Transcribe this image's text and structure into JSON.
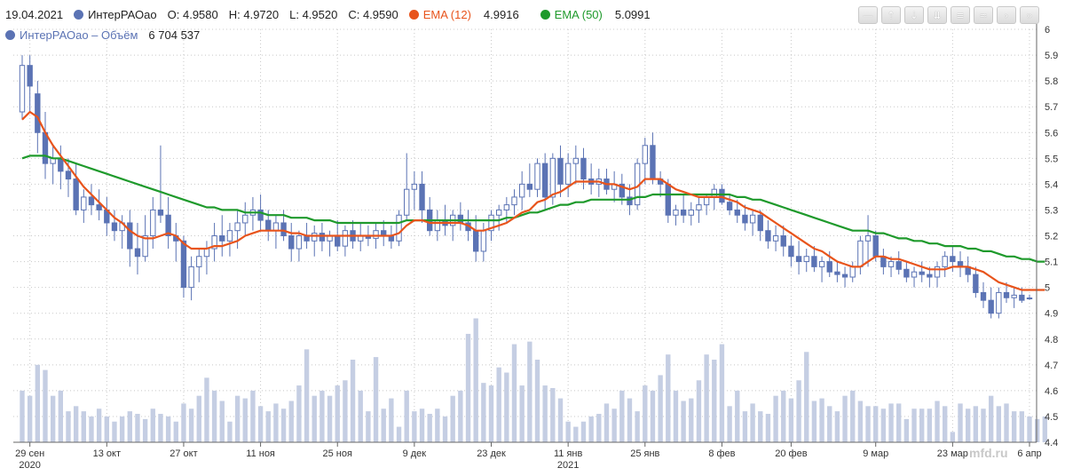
{
  "legend": {
    "date": "19.04.2021",
    "ticker": "ИнтерРАОао",
    "open": "O: 4.9580",
    "high": "H: 4.9720",
    "low": "L: 4.9520",
    "close": "C: 4.9590",
    "ema12_label": "EMA (12)",
    "ema12_value": "4.9916",
    "ema50_label": "EMA (50)",
    "ema50_value": "5.0991",
    "volume_label": "ИнтерРАОао – Объём",
    "volume_value": "6 704 537"
  },
  "toolbar": {
    "buttons": [
      {
        "name": "zoom-reset-button",
        "glyph": "—"
      },
      {
        "name": "scroll-up-button",
        "glyph": "⇡"
      },
      {
        "name": "download-button",
        "glyph": "⇣"
      },
      {
        "name": "save-button",
        "glyph": "⇊"
      },
      {
        "name": "line-style-button",
        "glyph": "≡"
      },
      {
        "name": "wave-button",
        "glyph": "≈"
      },
      {
        "name": "next-button",
        "glyph": "›"
      },
      {
        "name": "last-button",
        "glyph": "»"
      }
    ]
  },
  "watermark": "mfd.ru",
  "colors": {
    "candle": "#5b73b4",
    "ema12": "#e8541c",
    "ema50": "#1f9a2c",
    "volume": "#c5cee3",
    "grid": "#c8c8c8"
  },
  "chart_data": {
    "type": "candlestick",
    "y_ticks": [
      "6",
      "5.9",
      "5.8",
      "5.7",
      "5.6",
      "5.5",
      "5.4",
      "5.3",
      "5.2",
      "5.1",
      "5",
      "4.9",
      "4.8",
      "4.7",
      "4.6",
      "4.5",
      "4.4"
    ],
    "ylim": [
      4.4,
      6.0
    ],
    "x_ticks": [
      {
        "label": "29 сен",
        "year": "2020",
        "index": 1
      },
      {
        "label": "13 окт",
        "year": "",
        "index": 11
      },
      {
        "label": "27 окт",
        "year": "",
        "index": 21
      },
      {
        "label": "11 ноя",
        "year": "",
        "index": 31
      },
      {
        "label": "25 ноя",
        "year": "",
        "index": 41
      },
      {
        "label": "9 дек",
        "year": "",
        "index": 51
      },
      {
        "label": "23 дек",
        "year": "",
        "index": 61
      },
      {
        "label": "11 янв",
        "year": "2021",
        "index": 71
      },
      {
        "label": "25 янв",
        "year": "",
        "index": 81
      },
      {
        "label": "8 фев",
        "year": "",
        "index": 91
      },
      {
        "label": "20 фев",
        "year": "",
        "index": 100
      },
      {
        "label": "9 мар",
        "year": "",
        "index": 111
      },
      {
        "label": "23 мар",
        "year": "",
        "index": 121
      },
      {
        "label": "6 апр",
        "year": "",
        "index": 131
      }
    ],
    "candles": [
      [
        5.68,
        5.9,
        5.65,
        5.86
      ],
      [
        5.86,
        5.9,
        5.68,
        5.78
      ],
      [
        5.75,
        5.8,
        5.52,
        5.6
      ],
      [
        5.6,
        5.68,
        5.42,
        5.48
      ],
      [
        5.48,
        5.55,
        5.4,
        5.5
      ],
      [
        5.5,
        5.55,
        5.38,
        5.45
      ],
      [
        5.45,
        5.5,
        5.35,
        5.42
      ],
      [
        5.42,
        5.48,
        5.28,
        5.3
      ],
      [
        5.3,
        5.38,
        5.25,
        5.35
      ],
      [
        5.35,
        5.4,
        5.28,
        5.32
      ],
      [
        5.32,
        5.38,
        5.26,
        5.3
      ],
      [
        5.3,
        5.35,
        5.2,
        5.25
      ],
      [
        5.25,
        5.3,
        5.18,
        5.22
      ],
      [
        5.22,
        5.28,
        5.15,
        5.25
      ],
      [
        5.25,
        5.3,
        5.08,
        5.15
      ],
      [
        5.15,
        5.25,
        5.05,
        5.12
      ],
      [
        5.12,
        5.28,
        5.1,
        5.2
      ],
      [
        5.2,
        5.35,
        5.15,
        5.3
      ],
      [
        5.3,
        5.55,
        5.25,
        5.28
      ],
      [
        5.28,
        5.35,
        5.15,
        5.2
      ],
      [
        5.2,
        5.25,
        5.1,
        5.18
      ],
      [
        5.18,
        5.2,
        4.96,
        5.0
      ],
      [
        5.0,
        5.12,
        4.95,
        5.08
      ],
      [
        5.08,
        5.15,
        5.02,
        5.12
      ],
      [
        5.12,
        5.18,
        5.05,
        5.15
      ],
      [
        5.15,
        5.25,
        5.1,
        5.2
      ],
      [
        5.2,
        5.28,
        5.12,
        5.18
      ],
      [
        5.18,
        5.25,
        5.12,
        5.22
      ],
      [
        5.22,
        5.3,
        5.15,
        5.25
      ],
      [
        5.25,
        5.33,
        5.2,
        5.28
      ],
      [
        5.28,
        5.35,
        5.22,
        5.3
      ],
      [
        5.3,
        5.36,
        5.22,
        5.26
      ],
      [
        5.26,
        5.3,
        5.18,
        5.22
      ],
      [
        5.22,
        5.28,
        5.15,
        5.25
      ],
      [
        5.25,
        5.3,
        5.18,
        5.2
      ],
      [
        5.2,
        5.25,
        5.1,
        5.15
      ],
      [
        5.15,
        5.22,
        5.1,
        5.2
      ],
      [
        5.2,
        5.25,
        5.15,
        5.18
      ],
      [
        5.18,
        5.24,
        5.12,
        5.21
      ],
      [
        5.21,
        5.25,
        5.14,
        5.18
      ],
      [
        5.18,
        5.22,
        5.12,
        5.2
      ],
      [
        5.2,
        5.26,
        5.14,
        5.16
      ],
      [
        5.16,
        5.24,
        5.12,
        5.22
      ],
      [
        5.22,
        5.26,
        5.15,
        5.18
      ],
      [
        5.18,
        5.25,
        5.14,
        5.2
      ],
      [
        5.2,
        5.24,
        5.16,
        5.19
      ],
      [
        5.19,
        5.25,
        5.15,
        5.22
      ],
      [
        5.22,
        5.26,
        5.16,
        5.2
      ],
      [
        5.2,
        5.24,
        5.15,
        5.18
      ],
      [
        5.18,
        5.3,
        5.16,
        5.28
      ],
      [
        5.28,
        5.52,
        5.26,
        5.38
      ],
      [
        5.38,
        5.45,
        5.3,
        5.4
      ],
      [
        5.4,
        5.45,
        5.25,
        5.3
      ],
      [
        5.3,
        5.35,
        5.2,
        5.22
      ],
      [
        5.22,
        5.3,
        5.18,
        5.26
      ],
      [
        5.26,
        5.32,
        5.2,
        5.24
      ],
      [
        5.24,
        5.3,
        5.18,
        5.28
      ],
      [
        5.28,
        5.33,
        5.22,
        5.25
      ],
      [
        5.25,
        5.3,
        5.18,
        5.22
      ],
      [
        5.22,
        5.28,
        5.1,
        5.14
      ],
      [
        5.14,
        5.25,
        5.1,
        5.22
      ],
      [
        5.22,
        5.3,
        5.18,
        5.28
      ],
      [
        5.28,
        5.32,
        5.22,
        5.3
      ],
      [
        5.3,
        5.35,
        5.25,
        5.32
      ],
      [
        5.32,
        5.38,
        5.28,
        5.35
      ],
      [
        5.35,
        5.45,
        5.3,
        5.4
      ],
      [
        5.4,
        5.48,
        5.35,
        5.38
      ],
      [
        5.38,
        5.5,
        5.35,
        5.48
      ],
      [
        5.48,
        5.52,
        5.3,
        5.35
      ],
      [
        5.35,
        5.52,
        5.32,
        5.5
      ],
      [
        5.5,
        5.55,
        5.35,
        5.4
      ],
      [
        5.4,
        5.52,
        5.35,
        5.48
      ],
      [
        5.48,
        5.55,
        5.4,
        5.5
      ],
      [
        5.5,
        5.54,
        5.38,
        5.42
      ],
      [
        5.42,
        5.48,
        5.36,
        5.4
      ],
      [
        5.4,
        5.46,
        5.35,
        5.42
      ],
      [
        5.42,
        5.46,
        5.36,
        5.38
      ],
      [
        5.38,
        5.45,
        5.33,
        5.4
      ],
      [
        5.4,
        5.44,
        5.32,
        5.35
      ],
      [
        5.35,
        5.4,
        5.28,
        5.32
      ],
      [
        5.32,
        5.5,
        5.3,
        5.48
      ],
      [
        5.48,
        5.58,
        5.4,
        5.55
      ],
      [
        5.55,
        5.6,
        5.4,
        5.42
      ],
      [
        5.42,
        5.45,
        5.35,
        5.4
      ],
      [
        5.4,
        5.42,
        5.25,
        5.28
      ],
      [
        5.28,
        5.32,
        5.24,
        5.3
      ],
      [
        5.3,
        5.36,
        5.25,
        5.28
      ],
      [
        5.28,
        5.33,
        5.24,
        5.3
      ],
      [
        5.3,
        5.35,
        5.25,
        5.32
      ],
      [
        5.32,
        5.36,
        5.28,
        5.35
      ],
      [
        5.35,
        5.4,
        5.3,
        5.38
      ],
      [
        5.38,
        5.4,
        5.32,
        5.33
      ],
      [
        5.33,
        5.36,
        5.28,
        5.3
      ],
      [
        5.3,
        5.34,
        5.25,
        5.28
      ],
      [
        5.28,
        5.32,
        5.22,
        5.25
      ],
      [
        5.25,
        5.3,
        5.2,
        5.28
      ],
      [
        5.28,
        5.3,
        5.18,
        5.22
      ],
      [
        5.22,
        5.26,
        5.15,
        5.18
      ],
      [
        5.18,
        5.24,
        5.14,
        5.2
      ],
      [
        5.2,
        5.24,
        5.12,
        5.16
      ],
      [
        5.16,
        5.2,
        5.08,
        5.12
      ],
      [
        5.12,
        5.18,
        5.05,
        5.1
      ],
      [
        5.1,
        5.15,
        5.06,
        5.12
      ],
      [
        5.12,
        5.16,
        5.06,
        5.08
      ],
      [
        5.08,
        5.12,
        5.02,
        5.1
      ],
      [
        5.1,
        5.14,
        5.04,
        5.06
      ],
      [
        5.06,
        5.1,
        5.02,
        5.05
      ],
      [
        5.05,
        5.08,
        5.0,
        5.04
      ],
      [
        5.04,
        5.1,
        5.02,
        5.08
      ],
      [
        5.08,
        5.2,
        5.05,
        5.18
      ],
      [
        5.18,
        5.28,
        5.08,
        5.2
      ],
      [
        5.2,
        5.22,
        5.1,
        5.12
      ],
      [
        5.12,
        5.15,
        5.05,
        5.08
      ],
      [
        5.08,
        5.12,
        5.04,
        5.1
      ],
      [
        5.1,
        5.14,
        5.05,
        5.07
      ],
      [
        5.07,
        5.1,
        5.02,
        5.04
      ],
      [
        5.04,
        5.08,
        5.0,
        5.06
      ],
      [
        5.06,
        5.1,
        5.02,
        5.05
      ],
      [
        5.05,
        5.08,
        5.0,
        5.04
      ],
      [
        5.04,
        5.1,
        5.0,
        5.08
      ],
      [
        5.08,
        5.14,
        5.04,
        5.12
      ],
      [
        5.12,
        5.16,
        5.06,
        5.1
      ],
      [
        5.1,
        5.14,
        5.04,
        5.08
      ],
      [
        5.08,
        5.12,
        5.02,
        5.05
      ],
      [
        5.05,
        5.08,
        4.96,
        4.98
      ],
      [
        4.98,
        5.02,
        4.92,
        4.95
      ],
      [
        4.95,
        5.0,
        4.88,
        4.9
      ],
      [
        4.9,
        5.0,
        4.88,
        4.98
      ],
      [
        4.98,
        5.02,
        4.94,
        4.96
      ],
      [
        4.96,
        5.0,
        4.92,
        4.97
      ],
      [
        4.97,
        5.0,
        4.94,
        4.95
      ],
      [
        4.958,
        4.972,
        4.952,
        4.959
      ]
    ],
    "ema12": [
      5.65,
      5.68,
      5.66,
      5.6,
      5.55,
      5.51,
      5.47,
      5.43,
      5.39,
      5.36,
      5.33,
      5.3,
      5.27,
      5.25,
      5.22,
      5.2,
      5.19,
      5.19,
      5.2,
      5.21,
      5.2,
      5.17,
      5.15,
      5.15,
      5.15,
      5.16,
      5.16,
      5.17,
      5.18,
      5.2,
      5.21,
      5.22,
      5.22,
      5.22,
      5.22,
      5.21,
      5.21,
      5.2,
      5.2,
      5.2,
      5.2,
      5.2,
      5.2,
      5.2,
      5.2,
      5.2,
      5.2,
      5.2,
      5.2,
      5.21,
      5.24,
      5.26,
      5.26,
      5.25,
      5.25,
      5.25,
      5.25,
      5.25,
      5.24,
      5.22,
      5.22,
      5.23,
      5.24,
      5.25,
      5.27,
      5.29,
      5.3,
      5.33,
      5.34,
      5.36,
      5.37,
      5.39,
      5.41,
      5.41,
      5.41,
      5.41,
      5.4,
      5.4,
      5.39,
      5.38,
      5.39,
      5.42,
      5.42,
      5.42,
      5.4,
      5.38,
      5.37,
      5.36,
      5.35,
      5.35,
      5.35,
      5.35,
      5.34,
      5.33,
      5.31,
      5.3,
      5.29,
      5.27,
      5.25,
      5.23,
      5.21,
      5.19,
      5.17,
      5.15,
      5.14,
      5.12,
      5.1,
      5.09,
      5.08,
      5.08,
      5.1,
      5.12,
      5.12,
      5.11,
      5.11,
      5.1,
      5.09,
      5.08,
      5.07,
      5.07,
      5.07,
      5.08,
      5.08,
      5.08,
      5.07,
      5.06,
      5.04,
      5.02,
      5.01,
      5.0,
      4.99,
      4.99,
      4.99,
      4.99
    ],
    "ema50": [
      5.5,
      5.51,
      5.51,
      5.51,
      5.5,
      5.5,
      5.49,
      5.48,
      5.47,
      5.46,
      5.45,
      5.44,
      5.43,
      5.42,
      5.41,
      5.4,
      5.39,
      5.38,
      5.37,
      5.36,
      5.35,
      5.34,
      5.33,
      5.32,
      5.31,
      5.31,
      5.3,
      5.3,
      5.3,
      5.29,
      5.29,
      5.29,
      5.28,
      5.28,
      5.28,
      5.27,
      5.27,
      5.27,
      5.26,
      5.26,
      5.26,
      5.25,
      5.25,
      5.25,
      5.25,
      5.25,
      5.25,
      5.25,
      5.25,
      5.25,
      5.26,
      5.26,
      5.26,
      5.26,
      5.26,
      5.26,
      5.26,
      5.26,
      5.26,
      5.26,
      5.26,
      5.26,
      5.26,
      5.27,
      5.27,
      5.28,
      5.29,
      5.29,
      5.3,
      5.31,
      5.32,
      5.32,
      5.33,
      5.33,
      5.34,
      5.34,
      5.34,
      5.34,
      5.34,
      5.34,
      5.35,
      5.35,
      5.36,
      5.36,
      5.36,
      5.36,
      5.36,
      5.36,
      5.36,
      5.36,
      5.36,
      5.36,
      5.36,
      5.35,
      5.35,
      5.34,
      5.34,
      5.33,
      5.32,
      5.31,
      5.3,
      5.29,
      5.28,
      5.27,
      5.26,
      5.25,
      5.24,
      5.23,
      5.22,
      5.22,
      5.22,
      5.21,
      5.21,
      5.2,
      5.19,
      5.19,
      5.18,
      5.18,
      5.17,
      5.17,
      5.16,
      5.16,
      5.16,
      5.15,
      5.15,
      5.14,
      5.14,
      5.13,
      5.12,
      5.12,
      5.11,
      5.11,
      5.1,
      5.1
    ],
    "volumes": [
      4.6,
      4.58,
      4.7,
      4.68,
      4.58,
      4.6,
      4.52,
      4.54,
      4.52,
      4.5,
      4.53,
      4.5,
      4.48,
      4.5,
      4.52,
      4.51,
      4.49,
      4.53,
      4.51,
      4.5,
      4.48,
      4.55,
      4.53,
      4.58,
      4.65,
      4.6,
      4.56,
      4.48,
      4.58,
      4.57,
      4.6,
      4.54,
      4.52,
      4.55,
      4.53,
      4.56,
      4.62,
      4.76,
      4.58,
      4.6,
      4.58,
      4.62,
      4.64,
      4.72,
      4.6,
      4.52,
      4.73,
      4.53,
      4.57,
      4.46,
      4.6,
      4.52,
      4.53,
      4.51,
      4.53,
      4.5,
      4.58,
      4.6,
      4.82,
      4.88,
      4.63,
      4.62,
      4.69,
      4.67,
      4.78,
      4.62,
      4.79,
      4.72,
      4.62,
      4.61,
      4.57,
      4.48,
      4.46,
      4.48,
      4.5,
      4.51,
      4.55,
      4.53,
      4.6,
      4.57,
      4.52,
      4.62,
      4.6,
      4.66,
      4.74,
      4.6,
      4.56,
      4.57,
      4.64,
      4.74,
      4.72,
      4.78,
      4.54,
      4.6,
      4.52,
      4.55,
      4.52,
      4.51,
      4.58,
      4.6,
      4.57,
      4.64,
      4.75,
      4.56,
      4.57,
      4.54,
      4.52,
      4.58,
      4.6,
      4.56,
      4.54,
      4.54,
      4.53,
      4.55,
      4.55,
      4.49,
      4.53,
      4.53,
      4.53,
      4.56,
      4.54,
      4.44,
      4.55,
      4.53,
      4.54,
      4.53,
      4.58,
      4.54,
      4.55,
      4.52,
      4.52,
      4.5,
      4.49,
      4.5
    ]
  }
}
